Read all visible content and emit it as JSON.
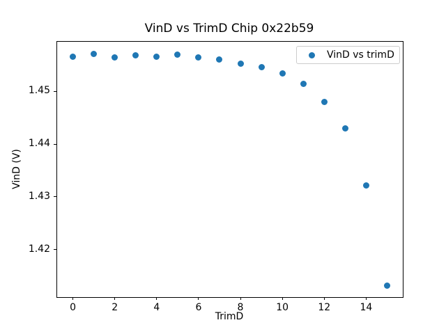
{
  "chart_data": {
    "type": "scatter",
    "title": "VinD vs TrimD Chip 0x22b59",
    "xlabel": "TrimD",
    "ylabel": "VinD (V)",
    "series_label": "VinD vs trimD",
    "legend_position": "upper right",
    "grid": false,
    "marker_color": "#1f77b4",
    "x": [
      0,
      1,
      2,
      3,
      4,
      5,
      6,
      7,
      8,
      9,
      10,
      11,
      12,
      13,
      14,
      15
    ],
    "y": [
      1.4565,
      1.4571,
      1.4564,
      1.4568,
      1.4565,
      1.4569,
      1.4564,
      1.4561,
      1.4552,
      1.4546,
      1.4534,
      1.4514,
      1.448,
      1.443,
      1.4322,
      1.4132
    ],
    "xlim": [
      -0.75,
      15.75
    ],
    "ylim": [
      1.411,
      1.4594
    ],
    "xticks": [
      0,
      2,
      4,
      6,
      8,
      10,
      12,
      14
    ],
    "xtick_labels": [
      "0",
      "2",
      "4",
      "6",
      "8",
      "10",
      "12",
      "14"
    ],
    "yticks": [
      1.42,
      1.43,
      1.44,
      1.45
    ],
    "ytick_labels": [
      "1.42",
      "1.43",
      "1.44",
      "1.45"
    ]
  }
}
